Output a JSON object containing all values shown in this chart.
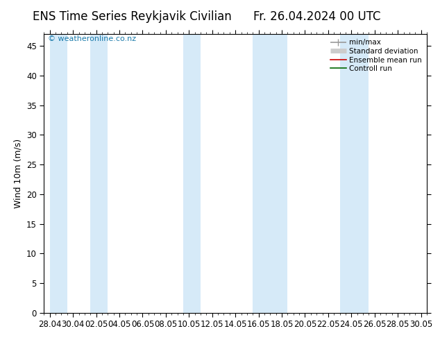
{
  "title_left": "ENS Time Series Reykjavik Civilian",
  "title_right": "Fr. 26.04.2024 00 UTC",
  "ylabel": "Wind 10m (m/s)",
  "watermark": "© weatheronline.co.nz",
  "ylim": [
    0,
    47
  ],
  "yticks": [
    0,
    5,
    10,
    15,
    20,
    25,
    30,
    35,
    40,
    45
  ],
  "xtick_labels": [
    "28.04",
    "30.04",
    "02.05",
    "04.05",
    "06.05",
    "08.05",
    "10.05",
    "12.05",
    "14.05",
    "16.05",
    "18.05",
    "20.05",
    "22.05",
    "24.05",
    "26.05",
    "28.05",
    "30.05"
  ],
  "xtick_positions": [
    0,
    2,
    4,
    6,
    8,
    10,
    12,
    14,
    16,
    18,
    20,
    22,
    24,
    26,
    28,
    30,
    32
  ],
  "xlim": [
    -0.5,
    32.5
  ],
  "shaded_bands": [
    [
      0.0,
      1.5
    ],
    [
      3.5,
      5.0
    ],
    [
      11.5,
      13.0
    ],
    [
      17.5,
      20.5
    ],
    [
      25.0,
      27.5
    ]
  ],
  "band_color": "#d6eaf8",
  "background_color": "#ffffff",
  "legend_items": [
    {
      "label": "min/max",
      "color": "#999999",
      "linestyle": "-",
      "linewidth": 1.2
    },
    {
      "label": "Standard deviation",
      "color": "#cccccc",
      "linestyle": "-",
      "linewidth": 5
    },
    {
      "label": "Ensemble mean run",
      "color": "#cc0000",
      "linestyle": "-",
      "linewidth": 1.2
    },
    {
      "label": "Controll run",
      "color": "#006600",
      "linestyle": "-",
      "linewidth": 1.2
    }
  ],
  "title_fontsize": 12,
  "tick_fontsize": 8.5,
  "ylabel_fontsize": 9,
  "watermark_color": "#1a7aaa",
  "watermark_fontsize": 8
}
